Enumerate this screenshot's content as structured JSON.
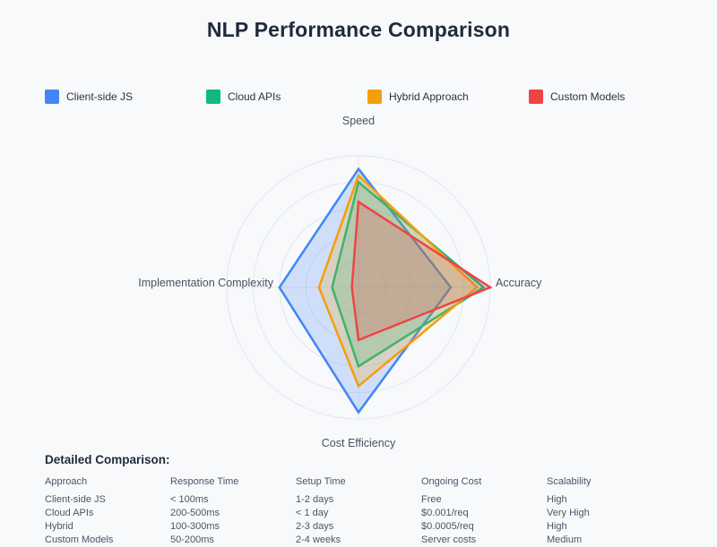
{
  "page": {
    "title": "NLP Performance Comparison"
  },
  "chart_data": {
    "type": "radar",
    "title": "NLP Performance Comparison",
    "axes": [
      "Speed",
      "Accuracy",
      "Cost Efficiency",
      "Implementation Complexity"
    ],
    "scale": {
      "min": 0,
      "max": 10,
      "rings": 5,
      "ring_step": 2,
      "grid_shape": "circular",
      "tick_labels_visible": false
    },
    "legend_position": "top",
    "series": [
      {
        "name": "Client-side JS",
        "color": "#4285f4",
        "values": [
          9,
          7,
          9.5,
          6
        ]
      },
      {
        "name": "Cloud APIs",
        "color": "#10b981",
        "values": [
          8,
          9.5,
          6,
          2
        ]
      },
      {
        "name": "Hybrid Approach",
        "color": "#f59e0b",
        "values": [
          8.5,
          9,
          7.5,
          3
        ]
      },
      {
        "name": "Custom Models",
        "color": "#ef4444",
        "values": [
          6.5,
          10,
          4,
          0.5
        ]
      }
    ]
  },
  "table": {
    "title": "Detailed Comparison:",
    "headers": [
      "Approach",
      "Response Time",
      "Setup Time",
      "Ongoing Cost",
      "Scalability"
    ],
    "rows": [
      [
        "Client-side JS",
        "< 100ms",
        "1-2 days",
        "Free",
        "High"
      ],
      [
        "Cloud APIs",
        "200-500ms",
        "< 1 day",
        "$0.001/req",
        "Very High"
      ],
      [
        "Hybrid",
        "100-300ms",
        "2-3 days",
        "$0.0005/req",
        "High"
      ],
      [
        "Custom Models",
        "50-200ms",
        "2-4 weeks",
        "Server costs",
        "Medium"
      ]
    ]
  },
  "colors": {
    "background": "#f8f9fa",
    "grid_line": "#e3e6f0",
    "axis_label": "#4a5161",
    "title_text": "#1f2a3c",
    "table_text": "#4a5568",
    "fill_alpha": 0.22
  }
}
